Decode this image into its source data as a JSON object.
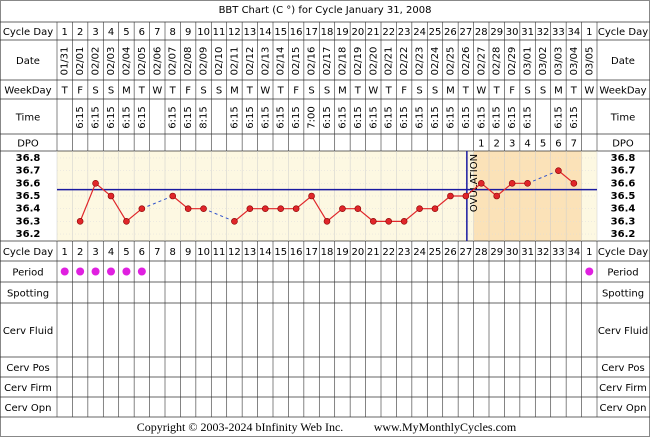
{
  "chart_data": {
    "type": "line",
    "title": "BBT Chart (C °) for Cycle January 31, 2008",
    "row_labels": {
      "cycle_day": "Cycle Day",
      "date": "Date",
      "weekday": "WeekDay",
      "time": "Time",
      "dpo": "DPO",
      "period": "Period",
      "spotting": "Spotting",
      "cerv_fluid": "Cerv Fluid",
      "cerv_pos": "Cerv Pos",
      "cerv_firm": "Cerv Firm",
      "cerv_opn": "Cerv Opn"
    },
    "cycle_days": [
      1,
      2,
      3,
      4,
      5,
      6,
      7,
      8,
      9,
      10,
      11,
      12,
      13,
      14,
      15,
      16,
      17,
      18,
      19,
      20,
      21,
      22,
      23,
      24,
      25,
      26,
      27,
      28,
      29,
      30,
      31,
      32,
      33,
      34,
      1
    ],
    "dates": [
      "01/31",
      "02/01",
      "02/02",
      "02/03",
      "02/04",
      "02/05",
      "02/06",
      "02/07",
      "02/08",
      "02/09",
      "02/10",
      "02/11",
      "02/12",
      "02/13",
      "02/14",
      "02/15",
      "02/16",
      "02/17",
      "02/18",
      "02/19",
      "02/20",
      "02/21",
      "02/22",
      "02/23",
      "02/24",
      "02/25",
      "02/26",
      "02/27",
      "02/28",
      "02/29",
      "03/01",
      "03/02",
      "03/03",
      "03/04",
      "03/05"
    ],
    "weekdays": [
      "T",
      "F",
      "S",
      "S",
      "M",
      "T",
      "W",
      "T",
      "F",
      "S",
      "S",
      "M",
      "T",
      "W",
      "T",
      "F",
      "S",
      "S",
      "M",
      "T",
      "W",
      "T",
      "F",
      "S",
      "S",
      "M",
      "T",
      "W",
      "T",
      "F",
      "S",
      "S",
      "M",
      "T",
      "W"
    ],
    "times": [
      null,
      "6:15",
      "6:15",
      "6:15",
      "6:15",
      "6:15",
      null,
      "6:15",
      "6:15",
      "8:15",
      null,
      "6:15",
      "6:15",
      "6:15",
      "6:15",
      "6:15",
      "7:00",
      "6:15",
      "6:15",
      "6:15",
      "6:15",
      "6:15",
      "6:15",
      "6:15",
      "6:15",
      "6:15",
      "6:15",
      "6:15",
      "6:15",
      "6:15",
      "6:15",
      null,
      "6:15",
      "6:15",
      null
    ],
    "dpo": [
      null,
      null,
      null,
      null,
      null,
      null,
      null,
      null,
      null,
      null,
      null,
      null,
      null,
      null,
      null,
      null,
      null,
      null,
      null,
      null,
      null,
      null,
      null,
      null,
      null,
      null,
      null,
      1,
      2,
      3,
      4,
      5,
      6,
      7,
      null
    ],
    "values": [
      null,
      36.3,
      36.6,
      36.5,
      36.3,
      36.4,
      null,
      36.5,
      36.4,
      36.4,
      null,
      36.3,
      36.4,
      36.4,
      36.4,
      36.4,
      36.5,
      36.3,
      36.4,
      36.4,
      36.3,
      36.3,
      36.3,
      36.4,
      36.4,
      36.5,
      36.5,
      36.6,
      36.5,
      36.6,
      36.6,
      null,
      36.7,
      36.6,
      null
    ],
    "color": "#e0262a",
    "period": [
      true,
      true,
      true,
      true,
      true,
      true,
      false,
      false,
      false,
      false,
      false,
      false,
      false,
      false,
      false,
      false,
      false,
      false,
      false,
      false,
      false,
      false,
      false,
      false,
      false,
      false,
      false,
      false,
      false,
      false,
      false,
      false,
      false,
      false,
      true
    ],
    "period_color": "#e020e0",
    "coverline": 36.55,
    "coverline_color": "#1a1aa0",
    "ovulation_label": "OVULATION",
    "ylim": [
      36.145,
      36.855
    ],
    "yticks": [
      36.2,
      36.3,
      36.4,
      36.5,
      36.6,
      36.7,
      36.8
    ],
    "copyright": "Copyright © 2003-2024 bInfinity Web Inc.",
    "site": "www.MyMonthlyCycles.com"
  }
}
